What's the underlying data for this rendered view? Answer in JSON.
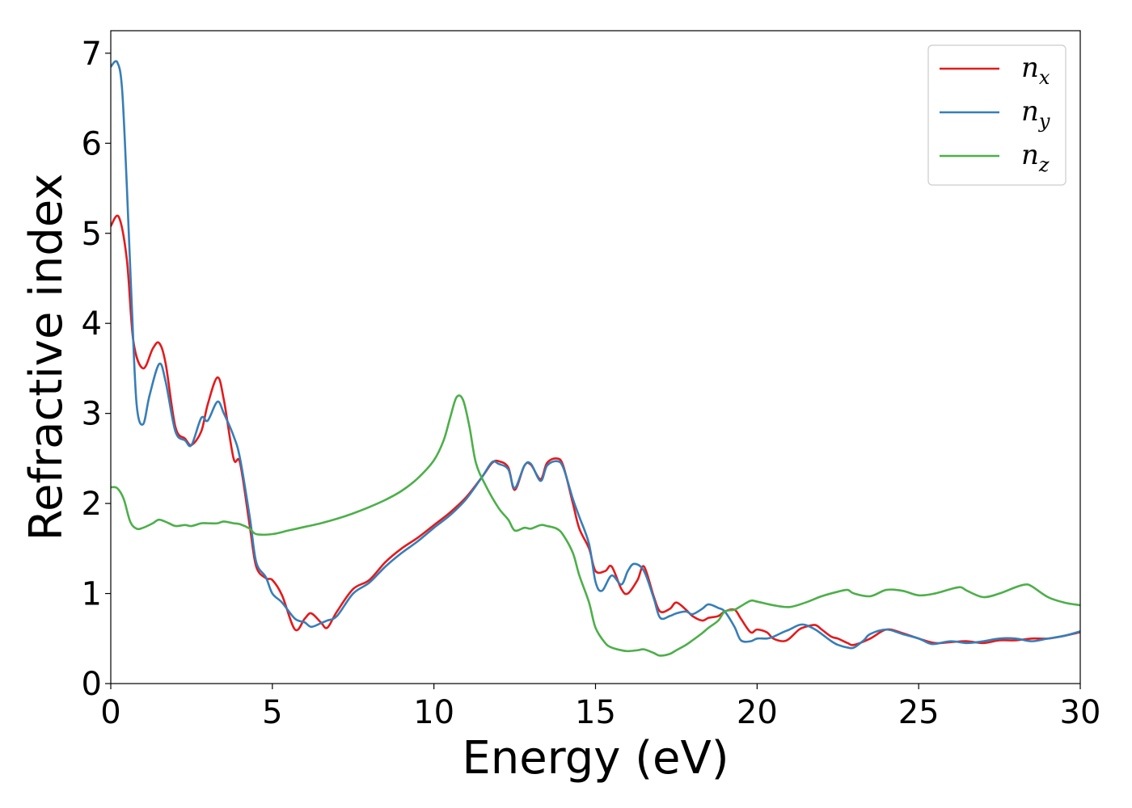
{
  "chart_data": {
    "type": "line",
    "xlabel": "Energy (eV)",
    "ylabel": "Refractive index",
    "xlim": [
      0,
      30
    ],
    "ylim": [
      0,
      7.25
    ],
    "xticks": [
      0,
      5,
      10,
      15,
      20,
      25,
      30
    ],
    "yticks": [
      0,
      1,
      2,
      3,
      4,
      5,
      6,
      7
    ],
    "grid": false,
    "legend_position": "top-right",
    "series": [
      {
        "name": "n_x",
        "label_base": "n",
        "label_sub": "x",
        "color": "#e41a1c",
        "x": [
          0,
          0.25,
          0.5,
          0.7,
          1.0,
          1.3,
          1.5,
          1.7,
          2.0,
          2.3,
          2.5,
          2.8,
          3.0,
          3.3,
          3.5,
          3.8,
          4.0,
          4.3,
          4.5,
          4.8,
          5.0,
          5.3,
          5.7,
          6.0,
          6.2,
          6.5,
          6.7,
          7.0,
          7.5,
          8.0,
          8.5,
          9.0,
          9.5,
          10.0,
          10.5,
          11.0,
          11.5,
          11.8,
          12.0,
          12.3,
          12.5,
          12.8,
          13.0,
          13.3,
          13.5,
          13.8,
          14.0,
          14.3,
          14.5,
          14.8,
          15.0,
          15.3,
          15.5,
          15.8,
          16.0,
          16.3,
          16.5,
          16.8,
          17.0,
          17.3,
          17.5,
          17.8,
          18.0,
          18.3,
          18.5,
          18.8,
          19.0,
          19.3,
          19.5,
          19.8,
          20.0,
          20.3,
          20.5,
          20.8,
          21.0,
          21.3,
          21.5,
          21.8,
          22.0,
          22.3,
          22.5,
          22.8,
          23.0,
          23.5,
          24.0,
          24.5,
          25.0,
          25.5,
          26.0,
          26.5,
          27.0,
          27.5,
          28.0,
          28.5,
          29.0,
          29.5,
          30.0
        ],
        "y": [
          5.08,
          5.18,
          4.7,
          3.8,
          3.5,
          3.72,
          3.78,
          3.55,
          2.85,
          2.72,
          2.65,
          2.8,
          3.1,
          3.4,
          3.15,
          2.5,
          2.45,
          1.75,
          1.3,
          1.17,
          1.15,
          0.98,
          0.6,
          0.72,
          0.78,
          0.68,
          0.62,
          0.8,
          1.05,
          1.15,
          1.35,
          1.5,
          1.62,
          1.76,
          1.9,
          2.07,
          2.3,
          2.45,
          2.47,
          2.4,
          2.15,
          2.42,
          2.43,
          2.27,
          2.45,
          2.5,
          2.42,
          2.0,
          1.72,
          1.5,
          1.25,
          1.25,
          1.3,
          1.05,
          1.0,
          1.15,
          1.3,
          0.97,
          0.8,
          0.83,
          0.9,
          0.82,
          0.75,
          0.7,
          0.73,
          0.75,
          0.8,
          0.82,
          0.72,
          0.57,
          0.6,
          0.57,
          0.5,
          0.47,
          0.5,
          0.6,
          0.63,
          0.65,
          0.6,
          0.52,
          0.5,
          0.45,
          0.43,
          0.5,
          0.6,
          0.56,
          0.5,
          0.45,
          0.46,
          0.47,
          0.45,
          0.48,
          0.48,
          0.5,
          0.5,
          0.53,
          0.57
        ]
      },
      {
        "name": "n_y",
        "label_base": "n",
        "label_sub": "y",
        "color": "#377eb8",
        "x": [
          0,
          0.2,
          0.35,
          0.5,
          0.65,
          0.8,
          1.0,
          1.2,
          1.5,
          1.7,
          2.0,
          2.3,
          2.5,
          2.8,
          3.0,
          3.3,
          3.5,
          3.8,
          4.0,
          4.3,
          4.5,
          4.8,
          5.0,
          5.3,
          5.7,
          6.0,
          6.2,
          6.5,
          6.7,
          7.0,
          7.5,
          8.0,
          8.5,
          9.0,
          9.5,
          10.0,
          10.5,
          11.0,
          11.5,
          11.8,
          12.0,
          12.3,
          12.5,
          12.8,
          13.0,
          13.3,
          13.5,
          13.8,
          14.0,
          14.3,
          14.5,
          14.8,
          15.0,
          15.2,
          15.5,
          15.8,
          16.0,
          16.2,
          16.5,
          16.8,
          17.0,
          17.3,
          17.5,
          17.8,
          18.0,
          18.3,
          18.5,
          18.8,
          19.0,
          19.3,
          19.5,
          19.8,
          20.0,
          20.3,
          20.5,
          20.8,
          21.0,
          21.3,
          21.5,
          21.8,
          22.0,
          22.3,
          22.5,
          22.8,
          23.0,
          23.3,
          23.5,
          24.0,
          24.5,
          25.0,
          25.3,
          25.5,
          26.0,
          26.5,
          27.0,
          27.5,
          28.0,
          28.5,
          29.0,
          29.5,
          30.0
        ],
        "y": [
          6.85,
          6.9,
          6.6,
          5.5,
          4.2,
          3.1,
          2.88,
          3.2,
          3.55,
          3.35,
          2.8,
          2.7,
          2.65,
          2.95,
          2.92,
          3.13,
          3.0,
          2.75,
          2.5,
          1.85,
          1.35,
          1.18,
          1.0,
          0.9,
          0.72,
          0.68,
          0.63,
          0.67,
          0.7,
          0.75,
          1.0,
          1.12,
          1.3,
          1.45,
          1.58,
          1.73,
          1.87,
          2.05,
          2.3,
          2.46,
          2.44,
          2.38,
          2.17,
          2.42,
          2.44,
          2.25,
          2.42,
          2.47,
          2.4,
          2.05,
          1.85,
          1.55,
          1.13,
          1.03,
          1.2,
          1.1,
          1.25,
          1.33,
          1.25,
          0.95,
          0.73,
          0.75,
          0.78,
          0.8,
          0.77,
          0.83,
          0.88,
          0.84,
          0.8,
          0.63,
          0.48,
          0.47,
          0.5,
          0.5,
          0.52,
          0.57,
          0.6,
          0.65,
          0.65,
          0.6,
          0.55,
          0.47,
          0.43,
          0.4,
          0.4,
          0.48,
          0.55,
          0.6,
          0.55,
          0.5,
          0.45,
          0.44,
          0.47,
          0.45,
          0.47,
          0.5,
          0.5,
          0.47,
          0.5,
          0.53,
          0.58
        ]
      },
      {
        "name": "n_z",
        "label_base": "n",
        "label_sub": "z",
        "color": "#4daf4a",
        "x": [
          0,
          0.2,
          0.4,
          0.6,
          0.8,
          1.0,
          1.3,
          1.5,
          1.8,
          2.0,
          2.3,
          2.5,
          2.8,
          3.0,
          3.3,
          3.5,
          3.8,
          4.0,
          4.3,
          4.5,
          5.0,
          5.5,
          6.0,
          6.5,
          7.0,
          7.5,
          8.0,
          8.5,
          9.0,
          9.5,
          10.0,
          10.3,
          10.5,
          10.7,
          10.9,
          11.1,
          11.3,
          11.6,
          12.0,
          12.3,
          12.5,
          12.8,
          13.0,
          13.3,
          13.5,
          13.8,
          14.0,
          14.3,
          14.5,
          14.8,
          15.0,
          15.3,
          15.5,
          15.8,
          16.0,
          16.3,
          16.5,
          16.8,
          17.0,
          17.3,
          17.5,
          17.8,
          18.0,
          18.3,
          18.5,
          18.8,
          19.0,
          19.3,
          19.5,
          19.8,
          20.0,
          20.5,
          21.0,
          21.5,
          22.0,
          22.5,
          22.8,
          23.0,
          23.5,
          24.0,
          24.5,
          25.0,
          25.5,
          26.0,
          26.3,
          26.5,
          27.0,
          27.5,
          28.0,
          28.3,
          28.5,
          29.0,
          29.5,
          30.0
        ],
        "y": [
          2.18,
          2.17,
          2.05,
          1.8,
          1.72,
          1.73,
          1.78,
          1.82,
          1.78,
          1.75,
          1.76,
          1.75,
          1.78,
          1.78,
          1.78,
          1.8,
          1.78,
          1.77,
          1.72,
          1.66,
          1.66,
          1.7,
          1.74,
          1.78,
          1.83,
          1.89,
          1.96,
          2.04,
          2.14,
          2.28,
          2.48,
          2.7,
          2.95,
          3.18,
          3.15,
          2.85,
          2.45,
          2.2,
          1.95,
          1.82,
          1.7,
          1.73,
          1.72,
          1.76,
          1.75,
          1.72,
          1.65,
          1.45,
          1.2,
          0.9,
          0.62,
          0.45,
          0.4,
          0.37,
          0.36,
          0.37,
          0.38,
          0.34,
          0.31,
          0.33,
          0.37,
          0.43,
          0.48,
          0.56,
          0.62,
          0.7,
          0.8,
          0.82,
          0.86,
          0.92,
          0.91,
          0.87,
          0.85,
          0.9,
          0.97,
          1.02,
          1.04,
          1.0,
          0.97,
          1.04,
          1.03,
          0.98,
          1.0,
          1.05,
          1.07,
          1.03,
          0.96,
          1.0,
          1.07,
          1.1,
          1.08,
          0.96,
          0.9,
          0.87
        ]
      }
    ]
  }
}
